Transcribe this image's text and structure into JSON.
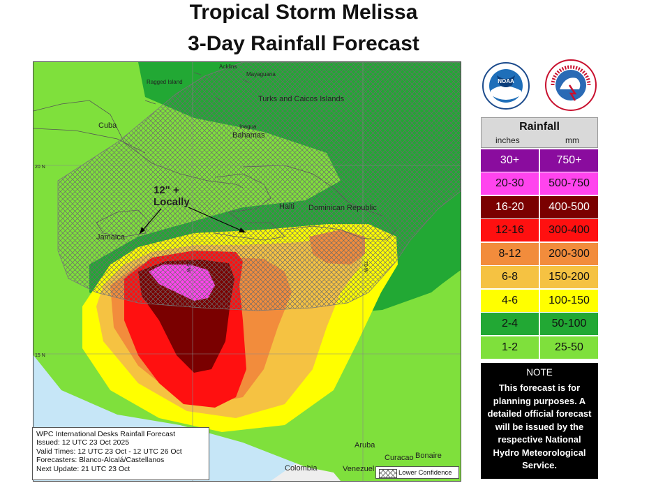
{
  "title_line1": "Tropical Storm Melissa",
  "title_line2": "3-Day Rainfall Forecast",
  "map": {
    "place_labels": {
      "acklins": "Acklins",
      "mayaguana": "Mayaguana",
      "ragged_island": "Ragged Island",
      "turks_caicos": "Turks and Caicos Islands",
      "cuba": "Cuba",
      "inagua": "Inagua",
      "bahamas": "Bahamas",
      "haiti": "Haiti",
      "dominican_republic": "Dominican Republic",
      "jamaica": "Jamaica",
      "aruba": "Aruba",
      "curacao": "Curacao",
      "bonaire": "Bonaire",
      "colombia": "Colombia",
      "venezuela": "Venezuel"
    },
    "grid_labels": {
      "lat20": "20 N",
      "lat15": "15 N",
      "lon75": "75 W",
      "lon70": "70 W"
    },
    "annotation_line1": "12\" +",
    "annotation_line2": "Locally",
    "colors": {
      "sea": "#c6e6f7",
      "land": "#eeeeee",
      "r1_2": "#7fe03c",
      "r2_4": "#22a834",
      "r4_6": "#ffff00",
      "r6_8": "#f5c242",
      "r8_12": "#f28c3c",
      "r12_16": "#ff1010",
      "r16_20": "#7a0000",
      "r20_30": "#ff44ee"
    }
  },
  "info_box": {
    "line1": "WPC International Desks Rainfall Forecast",
    "line2": "Issued: 12 UTC 23 Oct 2025",
    "line3": "Valid Times: 12 UTC 23 Oct - 12 UTC 26 Oct",
    "line4": "Forecasters: Blanco-Alcalá/Castellanos",
    "line5": "Next Update: 21 UTC 23 Oct"
  },
  "lower_confidence_label": "Lower Confidence",
  "logos": {
    "noaa": "noaa-logo",
    "nws": "national-weather-service-logo"
  },
  "legend": {
    "title": "Rainfall",
    "unit_inches": "inches",
    "unit_mm": "mm",
    "rows": [
      {
        "inches": "30+",
        "mm": "750+",
        "color": "#8a0c9e",
        "text": "#ffffff"
      },
      {
        "inches": "20-30",
        "mm": "500-750",
        "color": "#ff44ee",
        "text": "#111111"
      },
      {
        "inches": "16-20",
        "mm": "400-500",
        "color": "#7a0000",
        "text": "#ffffff"
      },
      {
        "inches": "12-16",
        "mm": "300-400",
        "color": "#ff1010",
        "text": "#111111"
      },
      {
        "inches": "8-12",
        "mm": "200-300",
        "color": "#f28c3c",
        "text": "#111111"
      },
      {
        "inches": "6-8",
        "mm": "150-200",
        "color": "#f5c242",
        "text": "#111111"
      },
      {
        "inches": "4-6",
        "mm": "100-150",
        "color": "#ffff00",
        "text": "#111111"
      },
      {
        "inches": "2-4",
        "mm": "50-100",
        "color": "#22a834",
        "text": "#111111"
      },
      {
        "inches": "1-2",
        "mm": "25-50",
        "color": "#7fe03c",
        "text": "#111111"
      }
    ]
  },
  "note": {
    "heading": "NOTE",
    "body": "This forecast is for planning purposes. A detailed official forecast will be issued by the respective National Hydro Meteorological Service."
  }
}
